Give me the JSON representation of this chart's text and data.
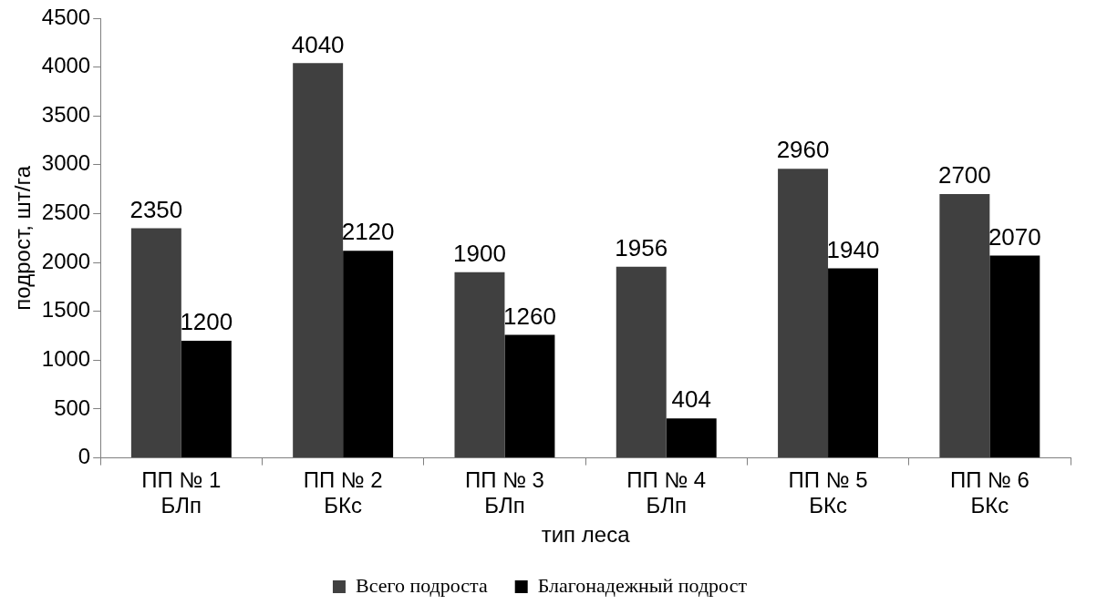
{
  "chart_data": {
    "type": "bar",
    "xlabel": "тип леса",
    "ylabel": "подрост, шт/га",
    "categories": [
      "ПП № 1\nБЛп",
      "ПП № 2\nБКс",
      "ПП № 3\nБЛп",
      "ПП № 4\nБЛп",
      "ПП № 5\nБКс",
      "ПП № 6\nБКс"
    ],
    "series": [
      {
        "name": "Всего подроста",
        "color": "#404040",
        "values": [
          2350,
          4040,
          1900,
          1956,
          2960,
          2700
        ]
      },
      {
        "name": "Благонадежный подрост",
        "color": "#000000",
        "values": [
          1200,
          2120,
          1260,
          404,
          1940,
          2070
        ]
      }
    ],
    "ylim": [
      0,
      4500
    ],
    "yticks": [
      0,
      500,
      1000,
      1500,
      2000,
      2500,
      3000,
      3500,
      4000,
      4500
    ],
    "grid": false,
    "legend": "bottom",
    "data_labels": true
  }
}
